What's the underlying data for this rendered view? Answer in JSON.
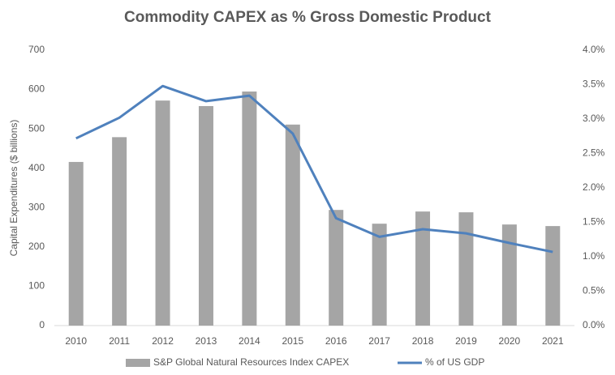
{
  "chart_data": {
    "type": "bar-line",
    "title": "Commodity CAPEX as % Gross Domestic Product",
    "y_label": "Capital Expenditures ($ billions)",
    "categories": [
      "2010",
      "2011",
      "2012",
      "2013",
      "2014",
      "2015",
      "2016",
      "2017",
      "2018",
      "2019",
      "2020",
      "2021"
    ],
    "series": [
      {
        "name": "S&P Global Natural Resources Index CAPEX",
        "type": "bar",
        "color": "#a5a5a5",
        "axis": "y",
        "values": [
          416,
          479,
          572,
          558,
          595,
          511,
          294,
          259,
          290,
          288,
          257,
          253
        ]
      },
      {
        "name": "% of US GDP",
        "type": "line",
        "color": "#4f81bd",
        "axis": "y2",
        "values": [
          2.72,
          3.02,
          3.48,
          3.26,
          3.34,
          2.79,
          1.56,
          1.29,
          1.4,
          1.34,
          1.2,
          1.07
        ]
      }
    ],
    "ylim": [
      0,
      700
    ],
    "yticks": [
      0,
      100,
      200,
      300,
      400,
      500,
      600,
      700
    ],
    "y2lim": [
      0,
      4
    ],
    "y2ticks": [
      {
        "value": 0,
        "label": "0.0%"
      },
      {
        "value": 0.5,
        "label": "0.5%"
      },
      {
        "value": 1,
        "label": "1.0%"
      },
      {
        "value": 1.5,
        "label": "1.5%"
      },
      {
        "value": 2,
        "label": "2.0%"
      },
      {
        "value": 2.5,
        "label": "2.5%"
      },
      {
        "value": 3,
        "label": "3.0%"
      },
      {
        "value": 3.5,
        "label": "3.5%"
      },
      {
        "value": 4,
        "label": "4.0%"
      }
    ],
    "grid": false,
    "legend": "bottom"
  }
}
